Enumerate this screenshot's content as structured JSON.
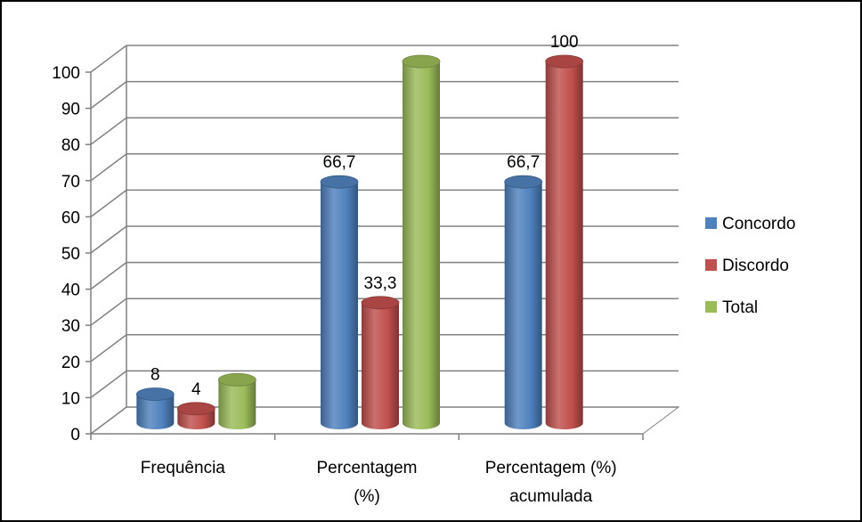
{
  "chart_data": {
    "type": "bar",
    "style": "3d-cylinder",
    "categories": [
      [
        "Frequência"
      ],
      [
        "Percentagem",
        "(%)"
      ],
      [
        "Percentagem (%)",
        "acumulada"
      ]
    ],
    "series": [
      {
        "name": "Concordo",
        "color": "#4F81BD",
        "values": [
          8,
          66.7,
          66.7
        ]
      },
      {
        "name": "Discordo",
        "color": "#C0504D",
        "values": [
          4,
          33.3,
          100
        ]
      },
      {
        "name": "Total",
        "color": "#9BBB59",
        "values": [
          12,
          100,
          null
        ]
      }
    ],
    "data_labels": [
      {
        "series": 0,
        "category": 0,
        "text": "8"
      },
      {
        "series": 1,
        "category": 0,
        "text": "4"
      },
      {
        "series": 0,
        "category": 1,
        "text": "66,7"
      },
      {
        "series": 1,
        "category": 1,
        "text": "33,3"
      },
      {
        "series": 0,
        "category": 2,
        "text": "66,7"
      },
      {
        "series": 1,
        "category": 2,
        "text": "100"
      }
    ],
    "y_ticks": [
      "0",
      "10",
      "20",
      "30",
      "40",
      "50",
      "60",
      "70",
      "80",
      "90",
      "100"
    ],
    "ylim": [
      0,
      100
    ],
    "grid": true,
    "legend": "right",
    "title": "",
    "xlabel": "",
    "ylabel": ""
  }
}
